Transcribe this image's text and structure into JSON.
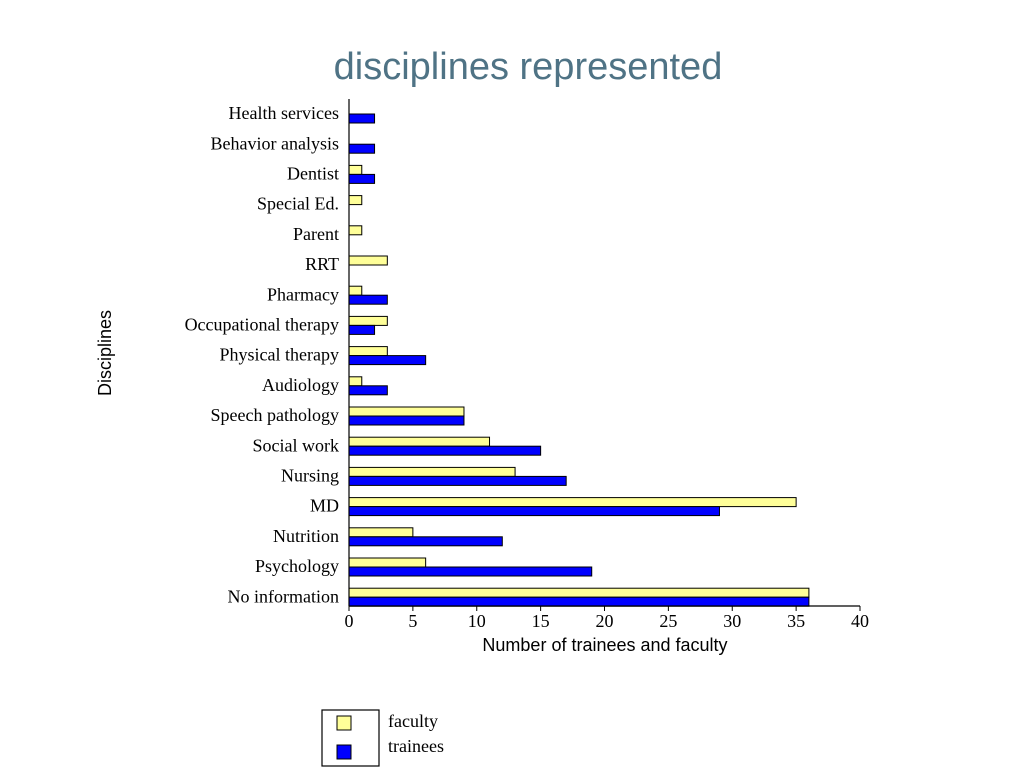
{
  "chart_data": {
    "type": "bar",
    "orientation": "horizontal",
    "title": "disciplines represented",
    "xlabel": "Number of trainees and faculty",
    "ylabel": "Disciplines",
    "xlim": [
      0,
      40
    ],
    "xticks": [
      0,
      5,
      10,
      15,
      20,
      25,
      30,
      35,
      40
    ],
    "grid": false,
    "legend_position": "bottom",
    "categories": [
      "Health services",
      "Behavior analysis",
      "Dentist",
      "Special Ed.",
      "Parent",
      "RRT",
      "Pharmacy",
      "Occupational therapy",
      "Physical therapy",
      "Audiology",
      "Speech pathology",
      "Social work",
      "Nursing",
      "MD",
      "Nutrition",
      "Psychology",
      "No information"
    ],
    "series": [
      {
        "name": "faculty",
        "color": "#ffff99",
        "values": [
          0,
          0,
          1,
          1,
          1,
          3,
          1,
          3,
          3,
          1,
          9,
          11,
          13,
          35,
          5,
          6,
          36
        ]
      },
      {
        "name": "trainees",
        "color": "#0000ff",
        "values": [
          2,
          2,
          2,
          0,
          0,
          0,
          3,
          2,
          6,
          3,
          9,
          15,
          17,
          29,
          12,
          19,
          36
        ]
      }
    ]
  }
}
